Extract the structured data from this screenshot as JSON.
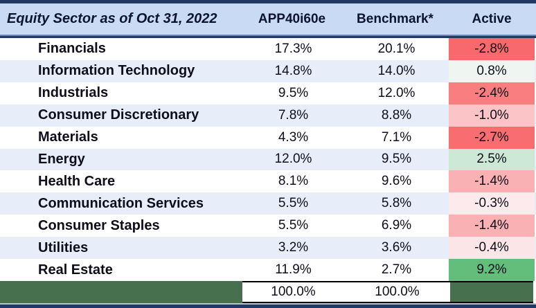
{
  "header": {
    "title": "Equity Sector as of Oct 31, 2022",
    "columns": [
      "APP40i60e",
      "Benchmark*",
      "Active"
    ]
  },
  "rows": [
    {
      "sector": "Financials",
      "fund": "17.3%",
      "benchmark": "20.1%",
      "active": "-2.8%",
      "active_bg": "#F8696B"
    },
    {
      "sector": "Information Technology",
      "fund": "14.8%",
      "benchmark": "14.0%",
      "active": "0.8%",
      "active_bg": "#EFF6F1"
    },
    {
      "sector": "Industrials",
      "fund": "9.5%",
      "benchmark": "12.0%",
      "active": "-2.4%",
      "active_bg": "#F97E80"
    },
    {
      "sector": "Consumer Discretionary",
      "fund": "7.8%",
      "benchmark": "8.8%",
      "active": "-1.0%",
      "active_bg": "#FBC5C8"
    },
    {
      "sector": "Materials",
      "fund": "4.3%",
      "benchmark": "7.1%",
      "active": "-2.7%",
      "active_bg": "#F86E70"
    },
    {
      "sector": "Energy",
      "fund": "12.0%",
      "benchmark": "9.5%",
      "active": "2.5%",
      "active_bg": "#CDE9D6"
    },
    {
      "sector": "Health Care",
      "fund": "8.1%",
      "benchmark": "9.6%",
      "active": "-1.4%",
      "active_bg": "#FAB1B4"
    },
    {
      "sector": "Communication Services",
      "fund": "5.5%",
      "benchmark": "5.8%",
      "active": "-0.3%",
      "active_bg": "#FCEAEC"
    },
    {
      "sector": "Consumer Staples",
      "fund": "5.5%",
      "benchmark": "6.9%",
      "active": "-1.4%",
      "active_bg": "#FAB1B4"
    },
    {
      "sector": "Utilities",
      "fund": "3.2%",
      "benchmark": "3.6%",
      "active": "-0.4%",
      "active_bg": "#FBE5E7"
    },
    {
      "sector": "Real Estate",
      "fund": "11.9%",
      "benchmark": "2.7%",
      "active": "9.2%",
      "active_bg": "#63BE7B"
    }
  ],
  "totals": {
    "fund": "100.0%",
    "benchmark": "100.0%"
  },
  "colors": {
    "header_bg": "#C8DAF4",
    "navy_border": "#1F3864",
    "alt_row_bg": "#E7EEF9",
    "totals_green_bg": "#47704F",
    "active_max_green": "#63BE7B",
    "active_min_red": "#F8696B"
  },
  "chart_data": {
    "type": "table",
    "title": "Equity Sector as of Oct 31, 2022",
    "columns": [
      "Equity Sector as of Oct 31, 2022",
      "APP40i60e",
      "Benchmark*",
      "Active"
    ],
    "categories": [
      "Financials",
      "Information Technology",
      "Industrials",
      "Consumer Discretionary",
      "Materials",
      "Energy",
      "Health Care",
      "Communication Services",
      "Consumer Staples",
      "Utilities",
      "Real Estate"
    ],
    "series": [
      {
        "name": "APP40i60e",
        "values": [
          17.3,
          14.8,
          9.5,
          7.8,
          4.3,
          12.0,
          8.1,
          5.5,
          5.5,
          3.2,
          11.9
        ],
        "total_shown": 100.0
      },
      {
        "name": "Benchmark*",
        "values": [
          20.1,
          14.0,
          12.0,
          8.8,
          7.1,
          9.5,
          9.6,
          5.8,
          6.9,
          3.6,
          2.7
        ],
        "total_shown": 100.0
      },
      {
        "name": "Active",
        "values": [
          -2.8,
          0.8,
          -2.4,
          -1.0,
          -2.7,
          2.5,
          -1.4,
          -0.3,
          -1.4,
          -0.4,
          9.2
        ]
      }
    ],
    "layout_hints": {
      "active_column_formatting": "red-white-green 3-color scale",
      "row_striping": "white and pale blue alternating",
      "units": "percent"
    }
  }
}
